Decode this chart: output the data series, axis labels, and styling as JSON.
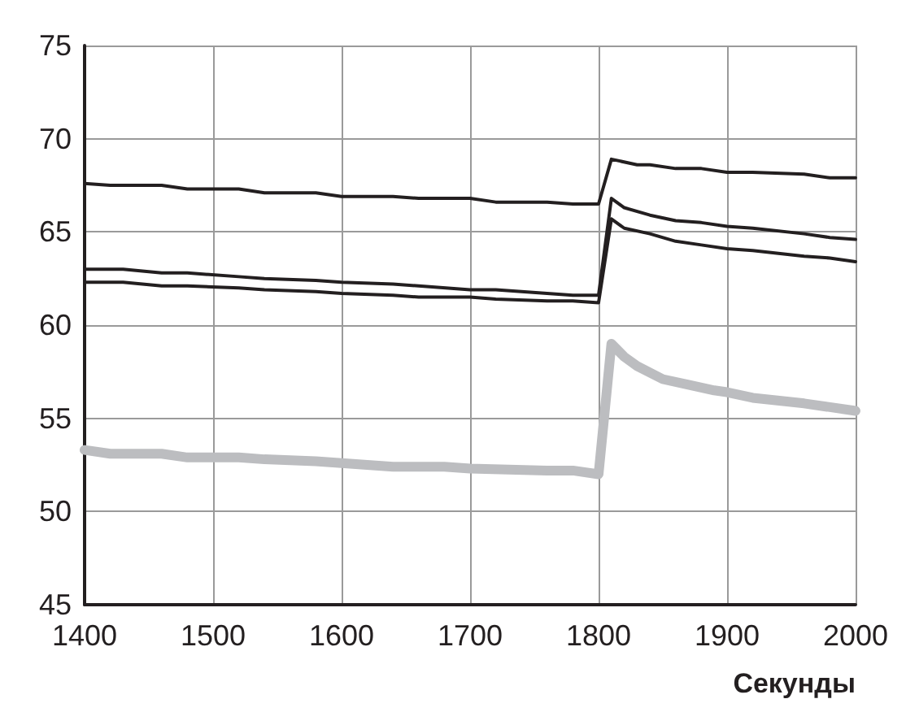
{
  "chart_data": {
    "type": "line",
    "xlabel": "Секунды",
    "xlim": [
      1400,
      2000
    ],
    "ylim": [
      45,
      75
    ],
    "xticks": [
      1400,
      1500,
      1600,
      1700,
      1800,
      1900,
      2000
    ],
    "yticks": [
      45,
      50,
      55,
      60,
      65,
      70,
      75
    ],
    "grid": true,
    "marker": "none",
    "line_style": "solid",
    "series": [
      {
        "color": "#231f20",
        "x": [
          1400,
          1420,
          1460,
          1480,
          1520,
          1540,
          1580,
          1600,
          1640,
          1660,
          1700,
          1720,
          1760,
          1780,
          1800,
          1810,
          1830,
          1840,
          1860,
          1880,
          1900,
          1920,
          1960,
          1980,
          2000
        ],
        "values": [
          67.6,
          67.5,
          67.5,
          67.3,
          67.3,
          67.1,
          67.1,
          66.9,
          66.9,
          66.8,
          66.8,
          66.6,
          66.6,
          66.5,
          66.5,
          68.9,
          68.6,
          68.6,
          68.4,
          68.4,
          68.2,
          68.2,
          68.1,
          67.9,
          67.9
        ]
      },
      {
        "color": "#231f20",
        "x": [
          1400,
          1430,
          1460,
          1480,
          1520,
          1540,
          1580,
          1600,
          1640,
          1660,
          1700,
          1720,
          1760,
          1780,
          1800,
          1810,
          1820,
          1840,
          1860,
          1880,
          1900,
          1920,
          1960,
          1980,
          2000
        ],
        "values": [
          63.0,
          63.0,
          62.8,
          62.8,
          62.6,
          62.5,
          62.4,
          62.3,
          62.2,
          62.1,
          61.9,
          61.9,
          61.7,
          61.6,
          61.6,
          66.8,
          66.3,
          65.9,
          65.6,
          65.5,
          65.3,
          65.2,
          64.9,
          64.7,
          64.6
        ]
      },
      {
        "color": "#231f20",
        "x": [
          1400,
          1430,
          1460,
          1480,
          1520,
          1540,
          1580,
          1600,
          1640,
          1660,
          1700,
          1720,
          1760,
          1780,
          1800,
          1810,
          1820,
          1840,
          1860,
          1880,
          1900,
          1920,
          1960,
          1980,
          2000
        ],
        "values": [
          62.3,
          62.3,
          62.1,
          62.1,
          62.0,
          61.9,
          61.8,
          61.7,
          61.6,
          61.5,
          61.5,
          61.4,
          61.3,
          61.3,
          61.2,
          65.7,
          65.2,
          64.9,
          64.5,
          64.3,
          64.1,
          64.0,
          63.7,
          63.6,
          63.4
        ]
      },
      {
        "color": "#bcbdc0",
        "x": [
          1400,
          1420,
          1460,
          1480,
          1520,
          1540,
          1580,
          1600,
          1620,
          1640,
          1680,
          1700,
          1760,
          1780,
          1800,
          1810,
          1820,
          1830,
          1850,
          1870,
          1890,
          1900,
          1920,
          1960,
          1980,
          2000
        ],
        "values": [
          53.3,
          53.1,
          53.1,
          52.9,
          52.9,
          52.8,
          52.7,
          52.6,
          52.5,
          52.4,
          52.4,
          52.3,
          52.2,
          52.2,
          52.0,
          59.0,
          58.3,
          57.8,
          57.1,
          56.8,
          56.5,
          56.4,
          56.1,
          55.8,
          55.6,
          55.4
        ]
      }
    ]
  }
}
